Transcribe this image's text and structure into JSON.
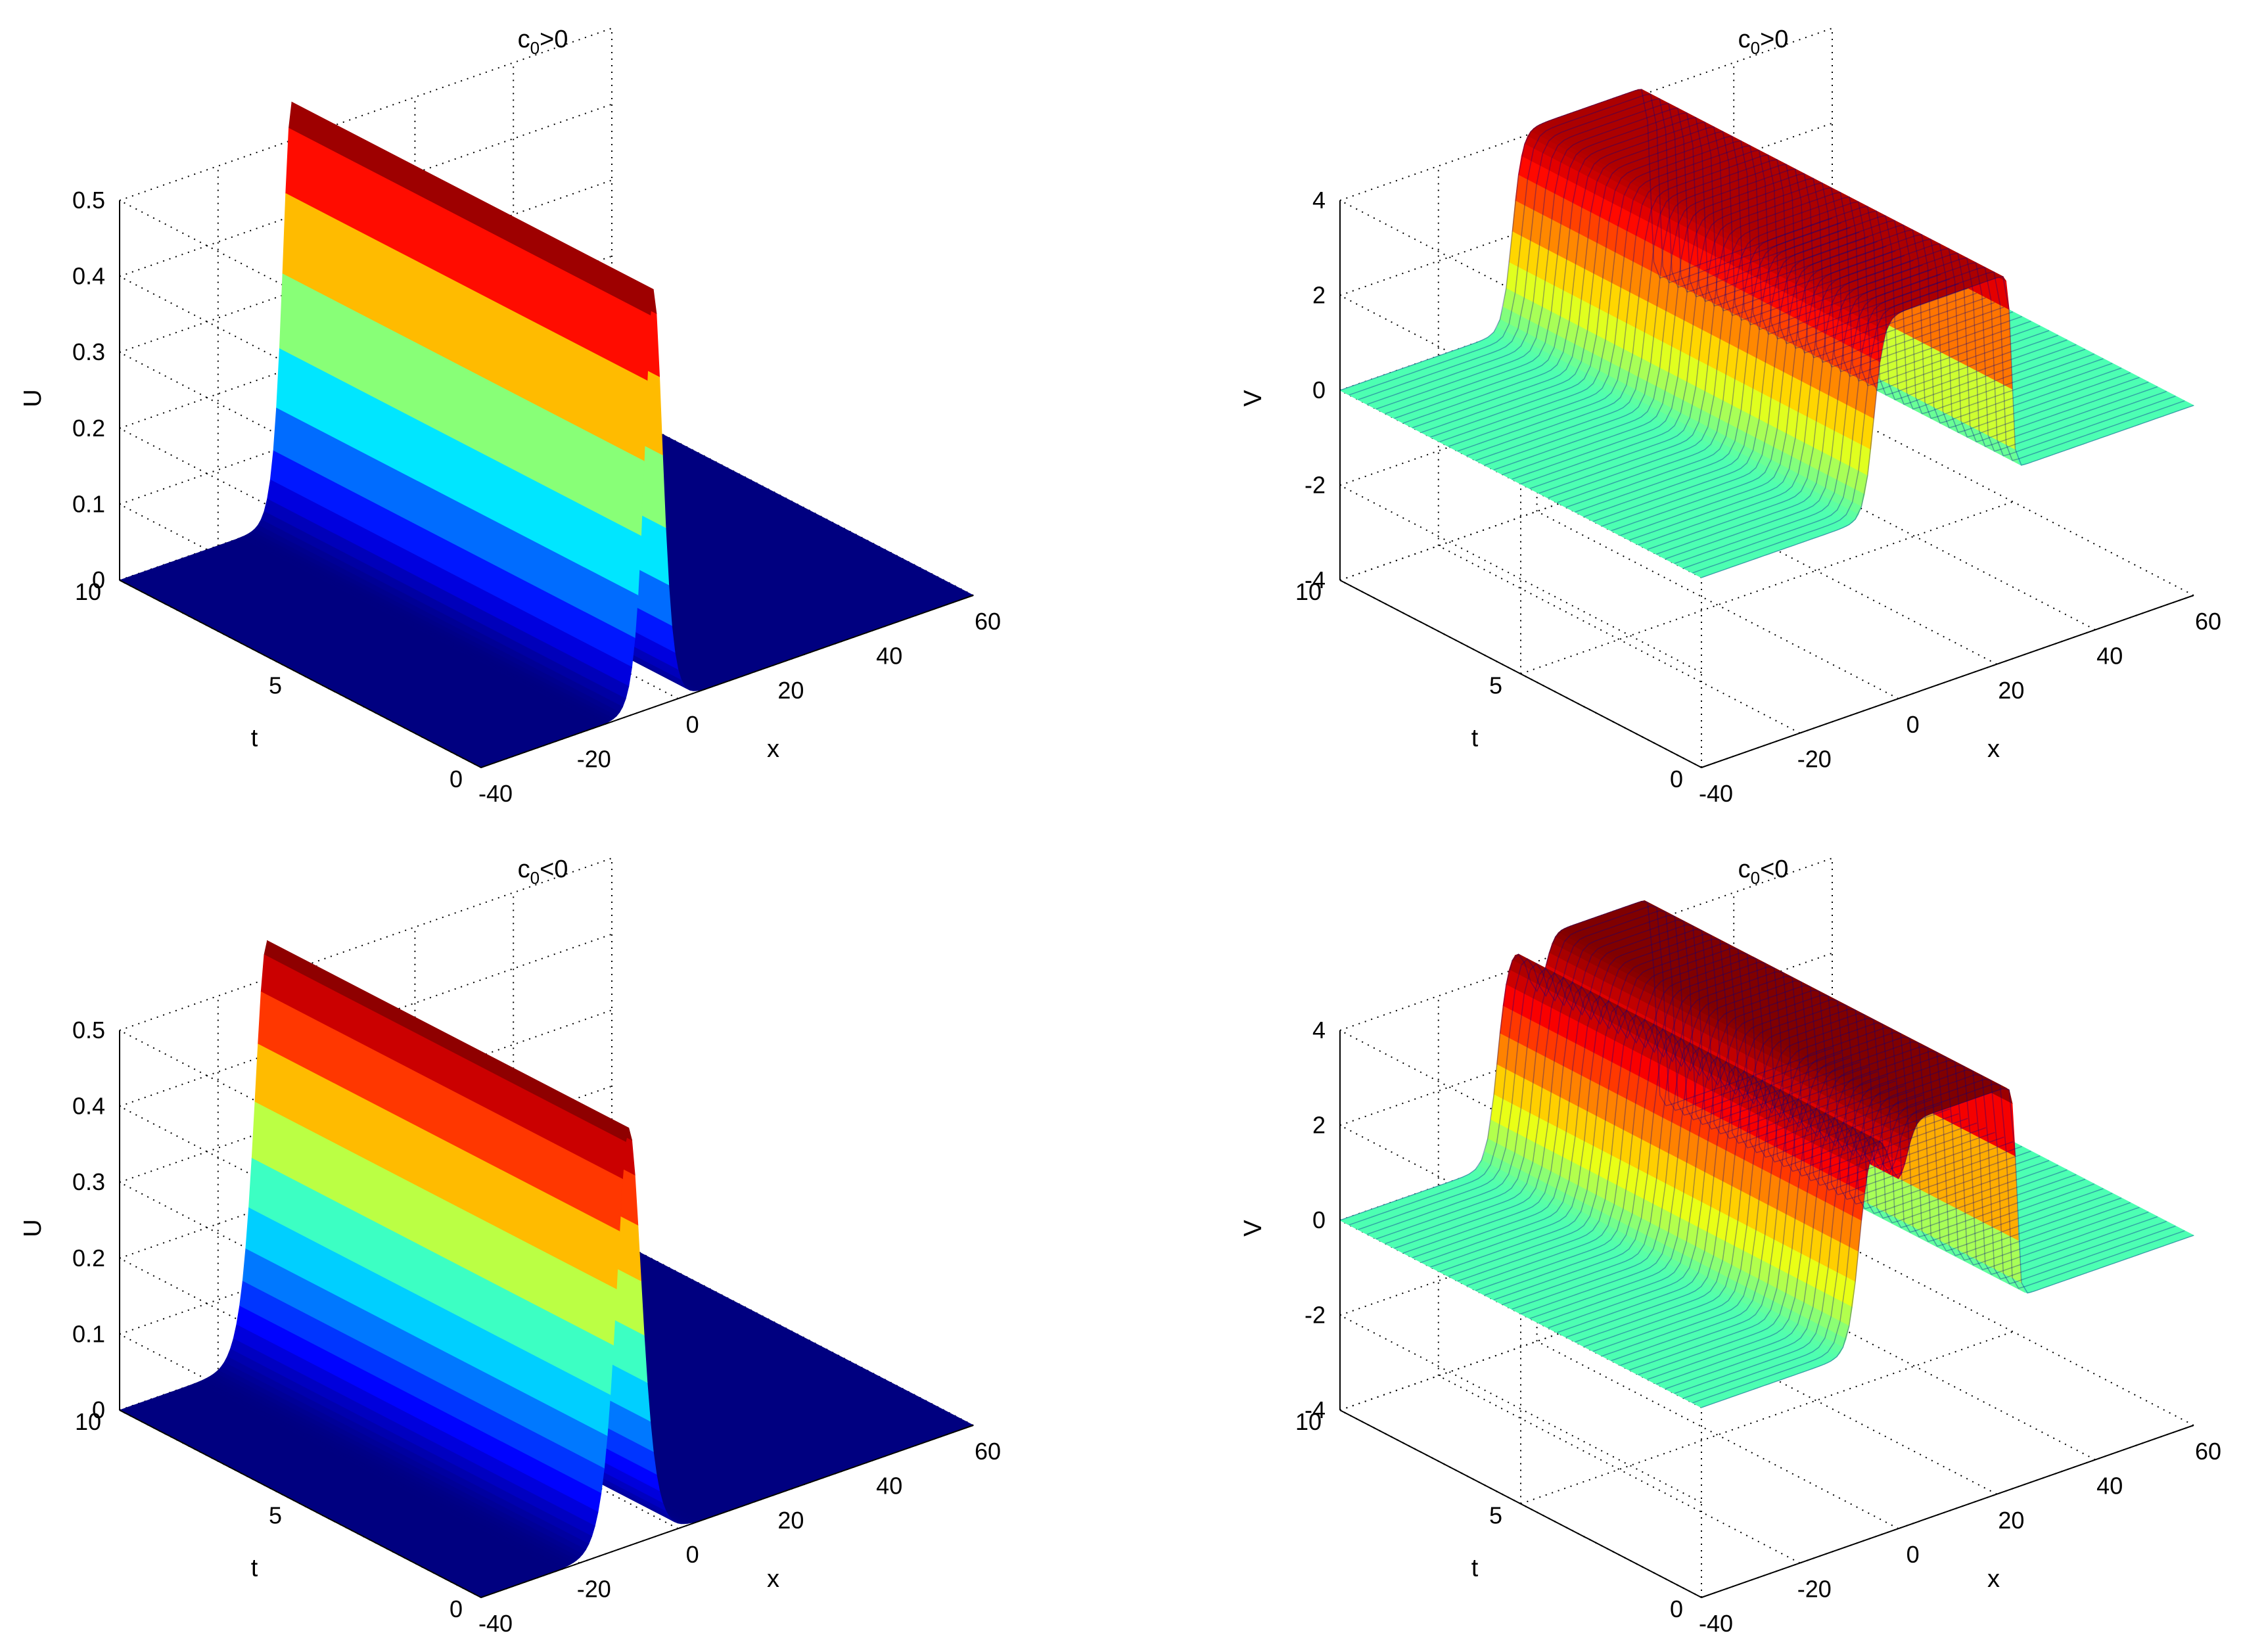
{
  "chart_data": [
    {
      "type": "surface",
      "title": {
        "base": "c",
        "sub": "0",
        "rest": ">0"
      },
      "xlabel": "x",
      "ylabel": "t",
      "zlabel": "U",
      "xlim": [
        -40,
        60
      ],
      "ylim": [
        0,
        10
      ],
      "zlim": [
        0,
        0.5
      ],
      "xticks": [
        -40,
        -20,
        0,
        20,
        40,
        60
      ],
      "yticks": [
        0,
        5,
        10
      ],
      "zticks": [
        0,
        0.1,
        0.2,
        0.3,
        0.4,
        0.5
      ],
      "colormap": "jet",
      "wave": {
        "kind": "bump",
        "amplitude": 0.55,
        "center_x": -5,
        "width": 2.5
      },
      "style": "smooth"
    },
    {
      "type": "surface",
      "title": {
        "base": "c",
        "sub": "0",
        "rest": ">0"
      },
      "xlabel": "x",
      "ylabel": "t",
      "zlabel": "V",
      "xlim": [
        -40,
        60
      ],
      "ylim": [
        0,
        10
      ],
      "zlim": [
        -4,
        4
      ],
      "xticks": [
        -40,
        -20,
        0,
        20,
        40,
        60
      ],
      "yticks": [
        0,
        5,
        10
      ],
      "zticks": [
        -4,
        -2,
        0,
        2,
        4
      ],
      "colormap": "jet",
      "wave": {
        "kind": "kink",
        "amplitude": 4.5,
        "center_x": -5,
        "width": 2.0
      },
      "style": "mesh"
    },
    {
      "type": "surface",
      "title": {
        "base": "c",
        "sub": "0",
        "rest": "<0"
      },
      "xlabel": "x",
      "ylabel": "t",
      "zlabel": "U",
      "xlim": [
        -40,
        60
      ],
      "ylim": [
        0,
        10
      ],
      "zlim": [
        0,
        0.5
      ],
      "xticks": [
        -40,
        -20,
        0,
        20,
        40,
        60
      ],
      "yticks": [
        0,
        5,
        10
      ],
      "zticks": [
        0,
        0.1,
        0.2,
        0.3,
        0.4,
        0.5
      ],
      "colormap": "jet",
      "wave": {
        "kind": "bump",
        "amplitude": 0.55,
        "center_x": -10,
        "width": 3.5
      },
      "style": "smooth"
    },
    {
      "type": "surface",
      "title": {
        "base": "c",
        "sub": "0",
        "rest": "<0"
      },
      "xlabel": "x",
      "ylabel": "t",
      "zlabel": "V",
      "xlim": [
        -40,
        60
      ],
      "ylim": [
        0,
        10
      ],
      "zlim": [
        -4,
        4
      ],
      "xticks": [
        -40,
        -20,
        0,
        20,
        40,
        60
      ],
      "yticks": [
        0,
        5,
        10
      ],
      "zticks": [
        -4,
        -2,
        0,
        2,
        4
      ],
      "colormap": "jet",
      "wave": {
        "kind": "double-kink",
        "amplitude": 4.5,
        "center_x": -8,
        "width": 2.2
      },
      "style": "mesh"
    }
  ]
}
